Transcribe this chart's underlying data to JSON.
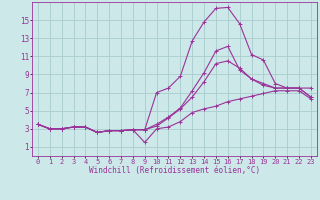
{
  "xlabel": "Windchill (Refroidissement éolien,°C)",
  "background_color": "#cce8e8",
  "grid_color": "#aacccc",
  "line_color": "#993399",
  "spine_color": "#666699",
  "x_hours": [
    0,
    1,
    2,
    3,
    4,
    5,
    6,
    7,
    8,
    9,
    10,
    11,
    12,
    13,
    14,
    15,
    16,
    17,
    18,
    19,
    20,
    21,
    22,
    23
  ],
  "curves": [
    [
      3.5,
      3.0,
      3.0,
      3.2,
      3.2,
      2.6,
      2.8,
      2.8,
      2.9,
      1.5,
      3.0,
      3.2,
      3.8,
      4.8,
      5.2,
      5.5,
      6.0,
      6.3,
      6.6,
      6.9,
      7.2,
      7.2,
      7.2,
      6.3
    ],
    [
      3.5,
      3.0,
      3.0,
      3.2,
      3.2,
      2.6,
      2.8,
      2.8,
      2.9,
      2.9,
      3.3,
      4.2,
      5.2,
      6.5,
      8.2,
      10.2,
      10.5,
      9.7,
      8.5,
      7.8,
      7.5,
      7.5,
      7.5,
      6.5
    ],
    [
      3.5,
      3.0,
      3.0,
      3.2,
      3.2,
      2.6,
      2.8,
      2.8,
      2.9,
      2.9,
      7.0,
      7.5,
      8.8,
      12.7,
      14.8,
      16.3,
      16.4,
      14.6,
      11.2,
      10.6,
      8.0,
      7.5,
      7.5,
      7.5
    ],
    [
      3.5,
      3.0,
      3.0,
      3.2,
      3.2,
      2.6,
      2.8,
      2.8,
      2.9,
      2.9,
      3.5,
      4.3,
      5.3,
      7.2,
      9.2,
      11.6,
      12.1,
      9.5,
      8.5,
      8.0,
      7.5,
      7.5,
      7.5,
      6.5
    ]
  ],
  "xlim": [
    -0.5,
    23.5
  ],
  "ylim": [
    0,
    17
  ],
  "yticks": [
    1,
    3,
    5,
    7,
    9,
    11,
    13,
    15
  ],
  "xticks": [
    0,
    1,
    2,
    3,
    4,
    5,
    6,
    7,
    8,
    9,
    10,
    11,
    12,
    13,
    14,
    15,
    16,
    17,
    18,
    19,
    20,
    21,
    22,
    23
  ],
  "marker": "+",
  "markersize": 3.5,
  "linewidth": 0.8,
  "xlabel_fontsize": 5.5,
  "tick_fontsize": 5.0
}
